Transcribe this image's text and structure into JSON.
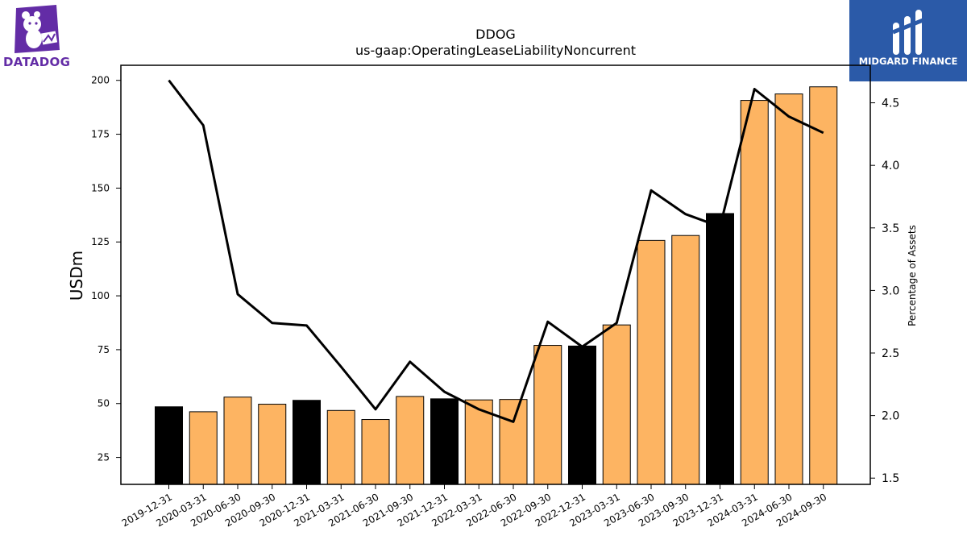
{
  "logos": {
    "left_text": "DATADOG",
    "right_text": "MIDGARD FINANCE"
  },
  "chart_data": {
    "type": "bar",
    "title": "DDOG",
    "subtitle": "us-gaap:OperatingLeaseLiabilityNoncurrent",
    "ylabel": "USDm",
    "y2label": "Percentage of Assets",
    "ylim": [
      12.5,
      207
    ],
    "y2lim": [
      1.45,
      4.8
    ],
    "yticks": [
      25,
      50,
      75,
      100,
      125,
      150,
      175,
      200
    ],
    "y2ticks": [
      1.5,
      2.0,
      2.5,
      3.0,
      3.5,
      4.0,
      4.5
    ],
    "categories": [
      "2019-12-31",
      "2020-03-31",
      "2020-06-30",
      "2020-09-30",
      "2020-12-31",
      "2021-03-31",
      "2021-06-30",
      "2021-09-30",
      "2021-12-31",
      "2022-03-31",
      "2022-06-30",
      "2022-09-30",
      "2022-12-31",
      "2023-03-31",
      "2023-06-30",
      "2023-09-30",
      "2023-12-31",
      "2024-03-31",
      "2024-06-30",
      "2024-09-30"
    ],
    "values": [
      48.5,
      46.2,
      53.0,
      49.7,
      51.5,
      46.8,
      42.6,
      53.3,
      52.2,
      51.7,
      51.9,
      77.0,
      76.7,
      86.5,
      125.7,
      128.0,
      138.2,
      190.7,
      193.7,
      197.0
    ],
    "bar_fill": [
      "black",
      "orange",
      "orange",
      "orange",
      "black",
      "orange",
      "orange",
      "orange",
      "black",
      "orange",
      "orange",
      "orange",
      "black",
      "orange",
      "orange",
      "orange",
      "black",
      "orange",
      "orange",
      "orange"
    ],
    "series": [
      {
        "type": "line",
        "axis": "right",
        "values": [
          4.68,
          4.32,
          2.97,
          2.74,
          2.72,
          2.39,
          2.05,
          2.43,
          2.19,
          2.05,
          1.95,
          2.75,
          2.55,
          2.74,
          3.8,
          3.61,
          3.51,
          4.61,
          4.39,
          4.26
        ]
      }
    ],
    "colors": {
      "orange": "#fdb462",
      "black": "#000000",
      "line": "#000000"
    }
  }
}
